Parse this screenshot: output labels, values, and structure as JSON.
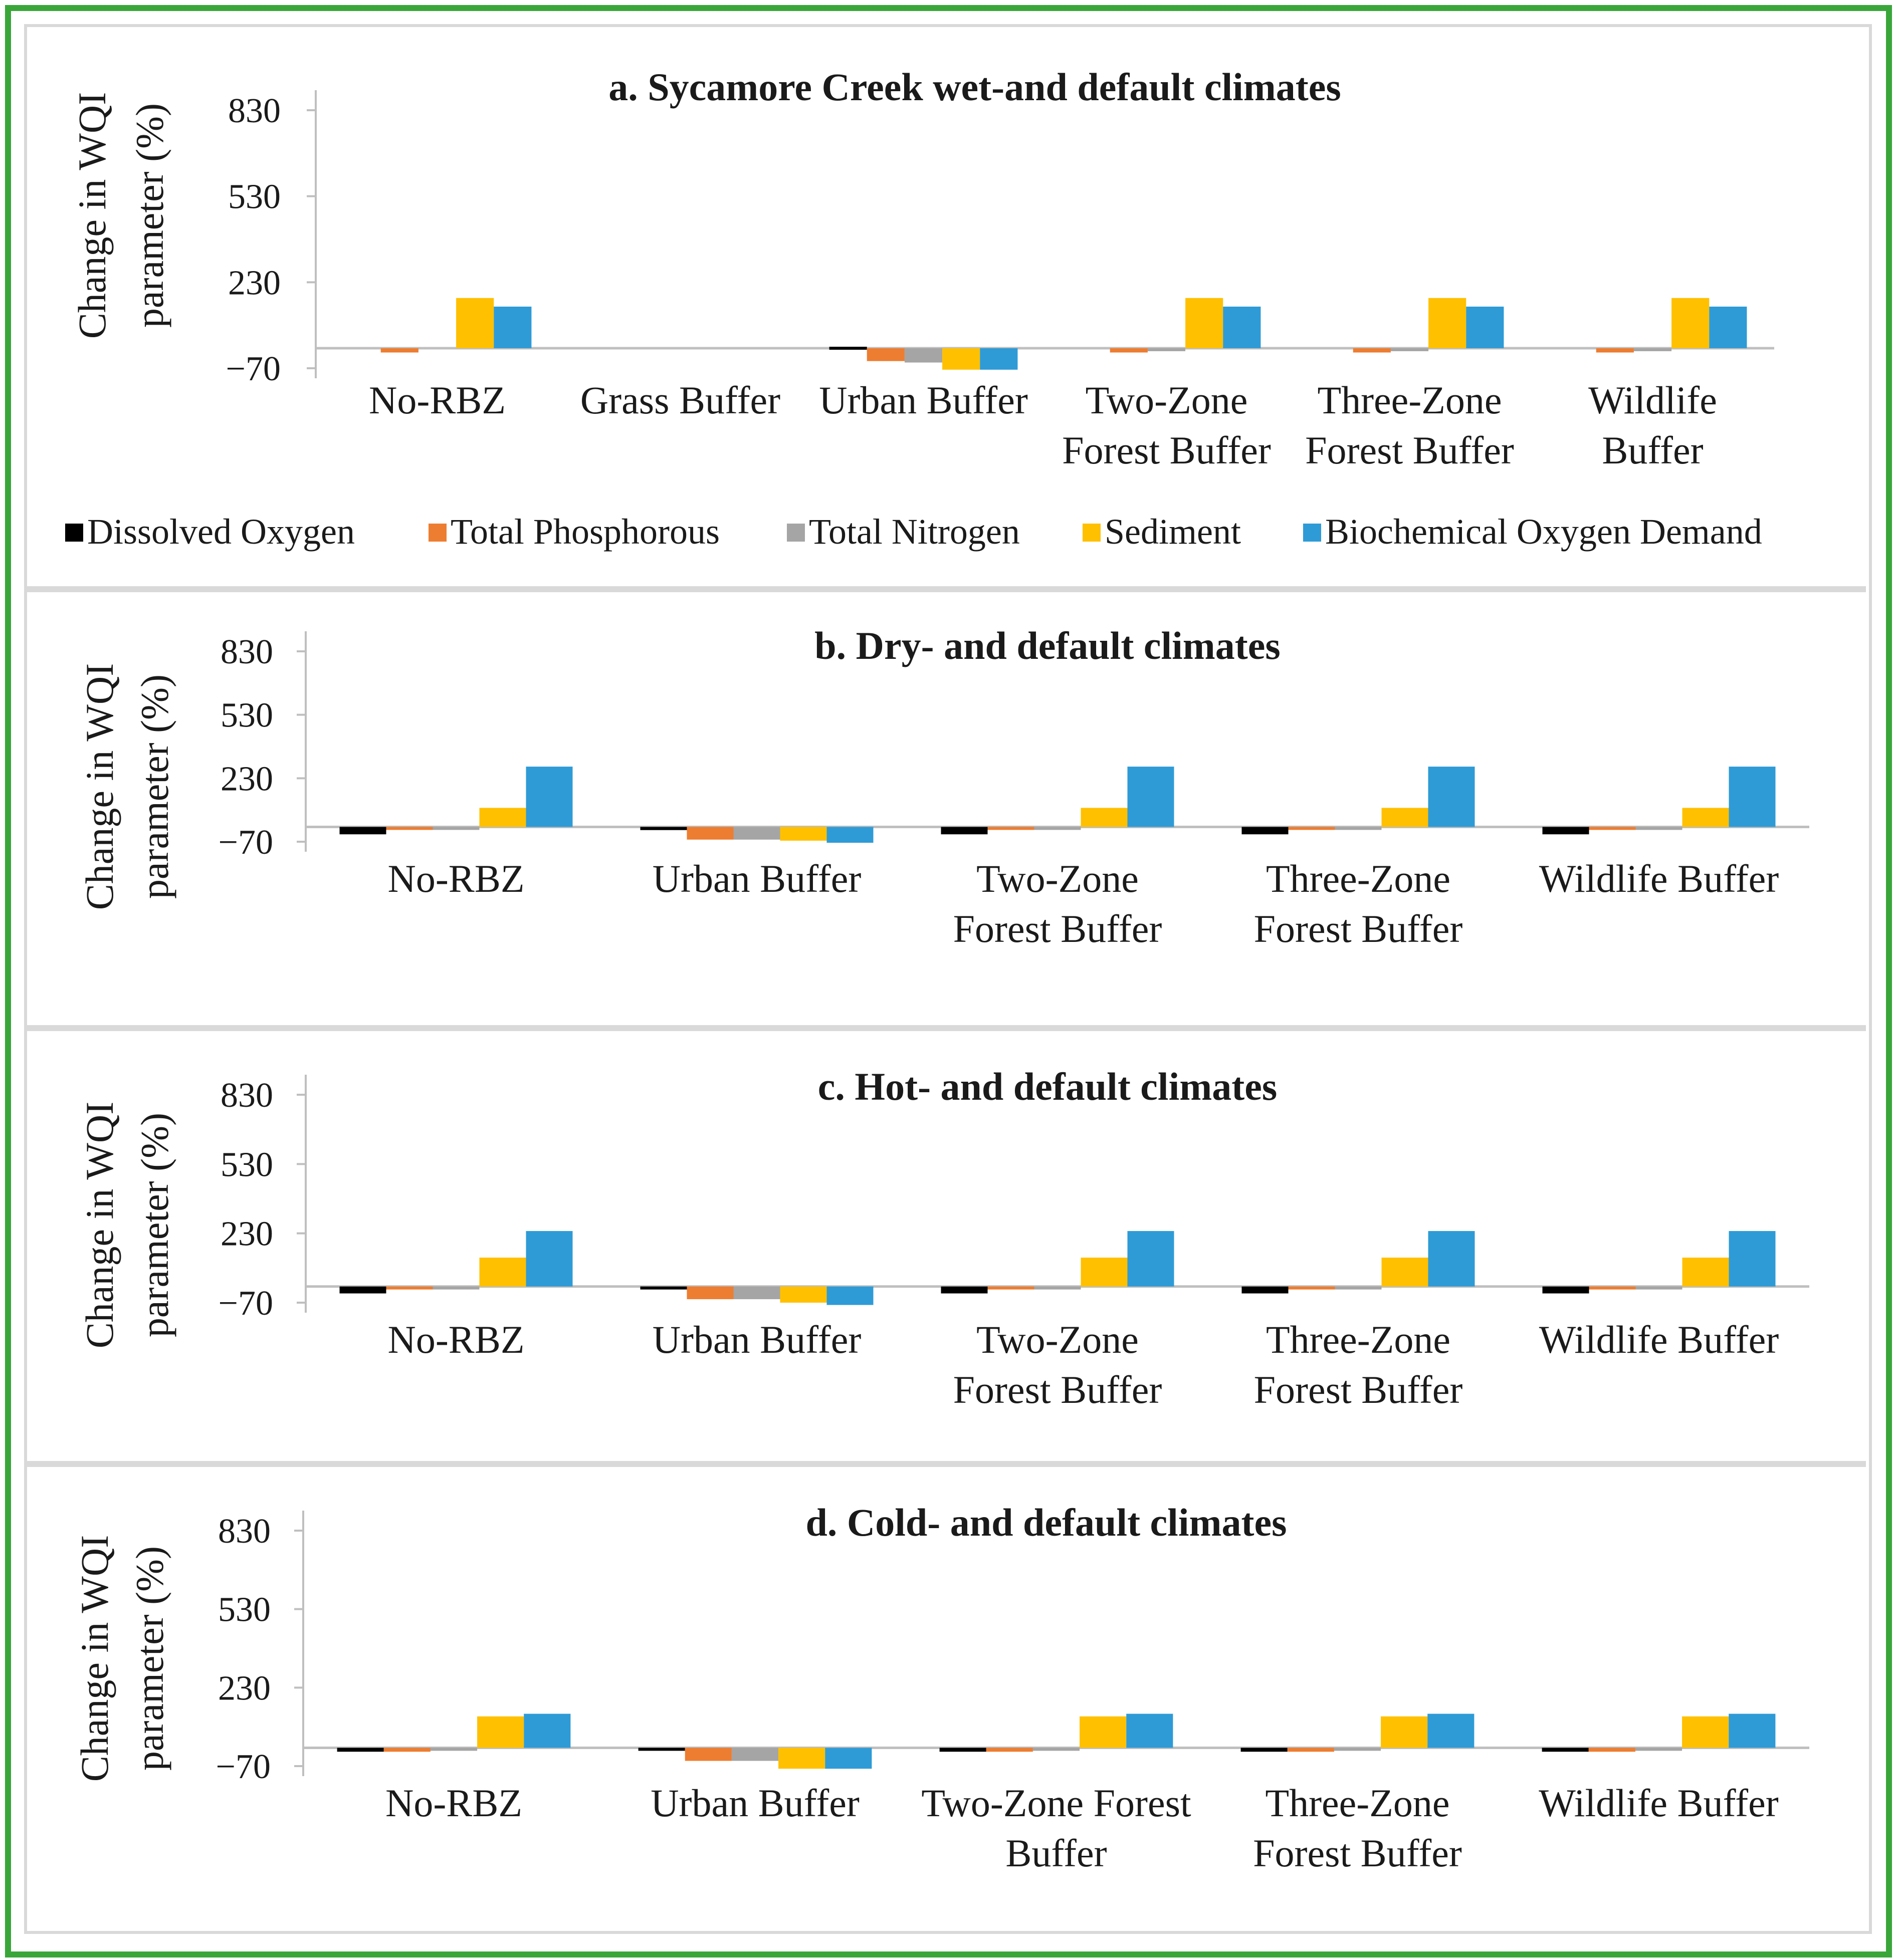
{
  "legend": [
    {
      "name": "Dissolved Oxygen",
      "color": "#000000"
    },
    {
      "name": "Total Phosphorous",
      "color": "#ed7d31"
    },
    {
      "name": "Total Nitrogen",
      "color": "#a5a5a5"
    },
    {
      "name": "Sediment",
      "color": "#ffc000"
    },
    {
      "name": "Biochemical Oxygen Demand",
      "color": "#2e9bd6"
    }
  ],
  "chart_data": [
    {
      "type": "bar",
      "title": "a. Sycamore Creek wet-and default climates",
      "ylabel": [
        "Change in WQI",
        "parameter (%)"
      ],
      "yticks": [
        "830",
        "530",
        "230",
        "−70"
      ],
      "ylim": [
        -70,
        830
      ],
      "categories": [
        [
          "No-RBZ"
        ],
        [
          "Grass Buffer"
        ],
        [
          "Urban Buffer"
        ],
        [
          "Two-Zone",
          "Forest Buffer"
        ],
        [
          "Three-Zone",
          "Forest Buffer"
        ],
        [
          "Wildlife",
          "Buffer"
        ]
      ],
      "series": [
        {
          "name": "Dissolved Oxygen",
          "values": [
            0,
            0,
            5,
            0,
            0,
            0
          ]
        },
        {
          "name": "Total Phosphorous",
          "values": [
            -15,
            0,
            -45,
            -15,
            -15,
            -15
          ]
        },
        {
          "name": "Total Nitrogen",
          "values": [
            0,
            0,
            -50,
            -5,
            -5,
            -5
          ]
        },
        {
          "name": "Sediment",
          "values": [
            175,
            0,
            -75,
            175,
            175,
            175
          ]
        },
        {
          "name": "Biochemical Oxygen Demand",
          "values": [
            145,
            0,
            -75,
            145,
            145,
            145
          ]
        }
      ]
    },
    {
      "type": "bar",
      "title": "b. Dry- and default climates",
      "ylabel": [
        "Change in WQI",
        "parameter (%)"
      ],
      "yticks": [
        "830",
        "530",
        "230",
        "−70"
      ],
      "ylim": [
        -70,
        830
      ],
      "categories": [
        [
          "No-RBZ"
        ],
        [
          "Urban Buffer"
        ],
        [
          "Two-Zone",
          "Forest Buffer"
        ],
        [
          "Three-Zone",
          "Forest Buffer"
        ],
        [
          "Wildlife Buffer"
        ]
      ],
      "series": [
        {
          "name": "Dissolved Oxygen",
          "values": [
            -35,
            -15,
            -35,
            -35,
            -35
          ]
        },
        {
          "name": "Total Phosphorous",
          "values": [
            -10,
            -60,
            -10,
            -10,
            -10
          ]
        },
        {
          "name": "Total Nitrogen",
          "values": [
            -5,
            -60,
            -5,
            -5,
            -5
          ]
        },
        {
          "name": "Sediment",
          "values": [
            90,
            -65,
            90,
            90,
            90
          ]
        },
        {
          "name": "Biochemical Oxygen Demand",
          "values": [
            285,
            -75,
            285,
            285,
            285
          ]
        }
      ]
    },
    {
      "type": "bar",
      "title": "c. Hot- and default climates",
      "ylabel": [
        "Change in WQI",
        "parameter (%)"
      ],
      "yticks": [
        "830",
        "530",
        "230",
        "−70"
      ],
      "ylim": [
        -70,
        830
      ],
      "categories": [
        [
          "No-RBZ"
        ],
        [
          "Urban Buffer"
        ],
        [
          "Two-Zone",
          "Forest Buffer"
        ],
        [
          "Three-Zone",
          "Forest Buffer"
        ],
        [
          "Wildlife Buffer"
        ]
      ],
      "series": [
        {
          "name": "Dissolved Oxygen",
          "values": [
            -30,
            -10,
            -30,
            -30,
            -30
          ]
        },
        {
          "name": "Total Phosphorous",
          "values": [
            -10,
            -55,
            -10,
            -10,
            -10
          ]
        },
        {
          "name": "Total Nitrogen",
          "values": [
            -5,
            -55,
            -5,
            -5,
            -5
          ]
        },
        {
          "name": "Sediment",
          "values": [
            125,
            -70,
            125,
            125,
            125
          ]
        },
        {
          "name": "Biochemical Oxygen Demand",
          "values": [
            240,
            -80,
            240,
            240,
            240
          ]
        }
      ]
    },
    {
      "type": "bar",
      "title": "d. Cold- and default climates",
      "ylabel": [
        "Change in WQI",
        "parameter (%)"
      ],
      "yticks": [
        "830",
        "530",
        "230",
        "−70"
      ],
      "ylim": [
        -70,
        830
      ],
      "categories": [
        [
          "No-RBZ"
        ],
        [
          "Urban Buffer"
        ],
        [
          "Two-Zone Forest",
          "Buffer"
        ],
        [
          "Three-Zone",
          "Forest Buffer"
        ],
        [
          "Wildlife Buffer"
        ]
      ],
      "series": [
        {
          "name": "Dissolved Oxygen",
          "values": [
            -15,
            -5,
            -15,
            -15,
            -15
          ]
        },
        {
          "name": "Total Phosphorous",
          "values": [
            -15,
            -50,
            -15,
            -15,
            -15
          ]
        },
        {
          "name": "Total Nitrogen",
          "values": [
            -5,
            -50,
            -5,
            -5,
            -5
          ]
        },
        {
          "name": "Sediment",
          "values": [
            120,
            -80,
            120,
            120,
            120
          ]
        },
        {
          "name": "Biochemical Oxygen Demand",
          "values": [
            130,
            -80,
            130,
            130,
            130
          ]
        }
      ]
    }
  ]
}
